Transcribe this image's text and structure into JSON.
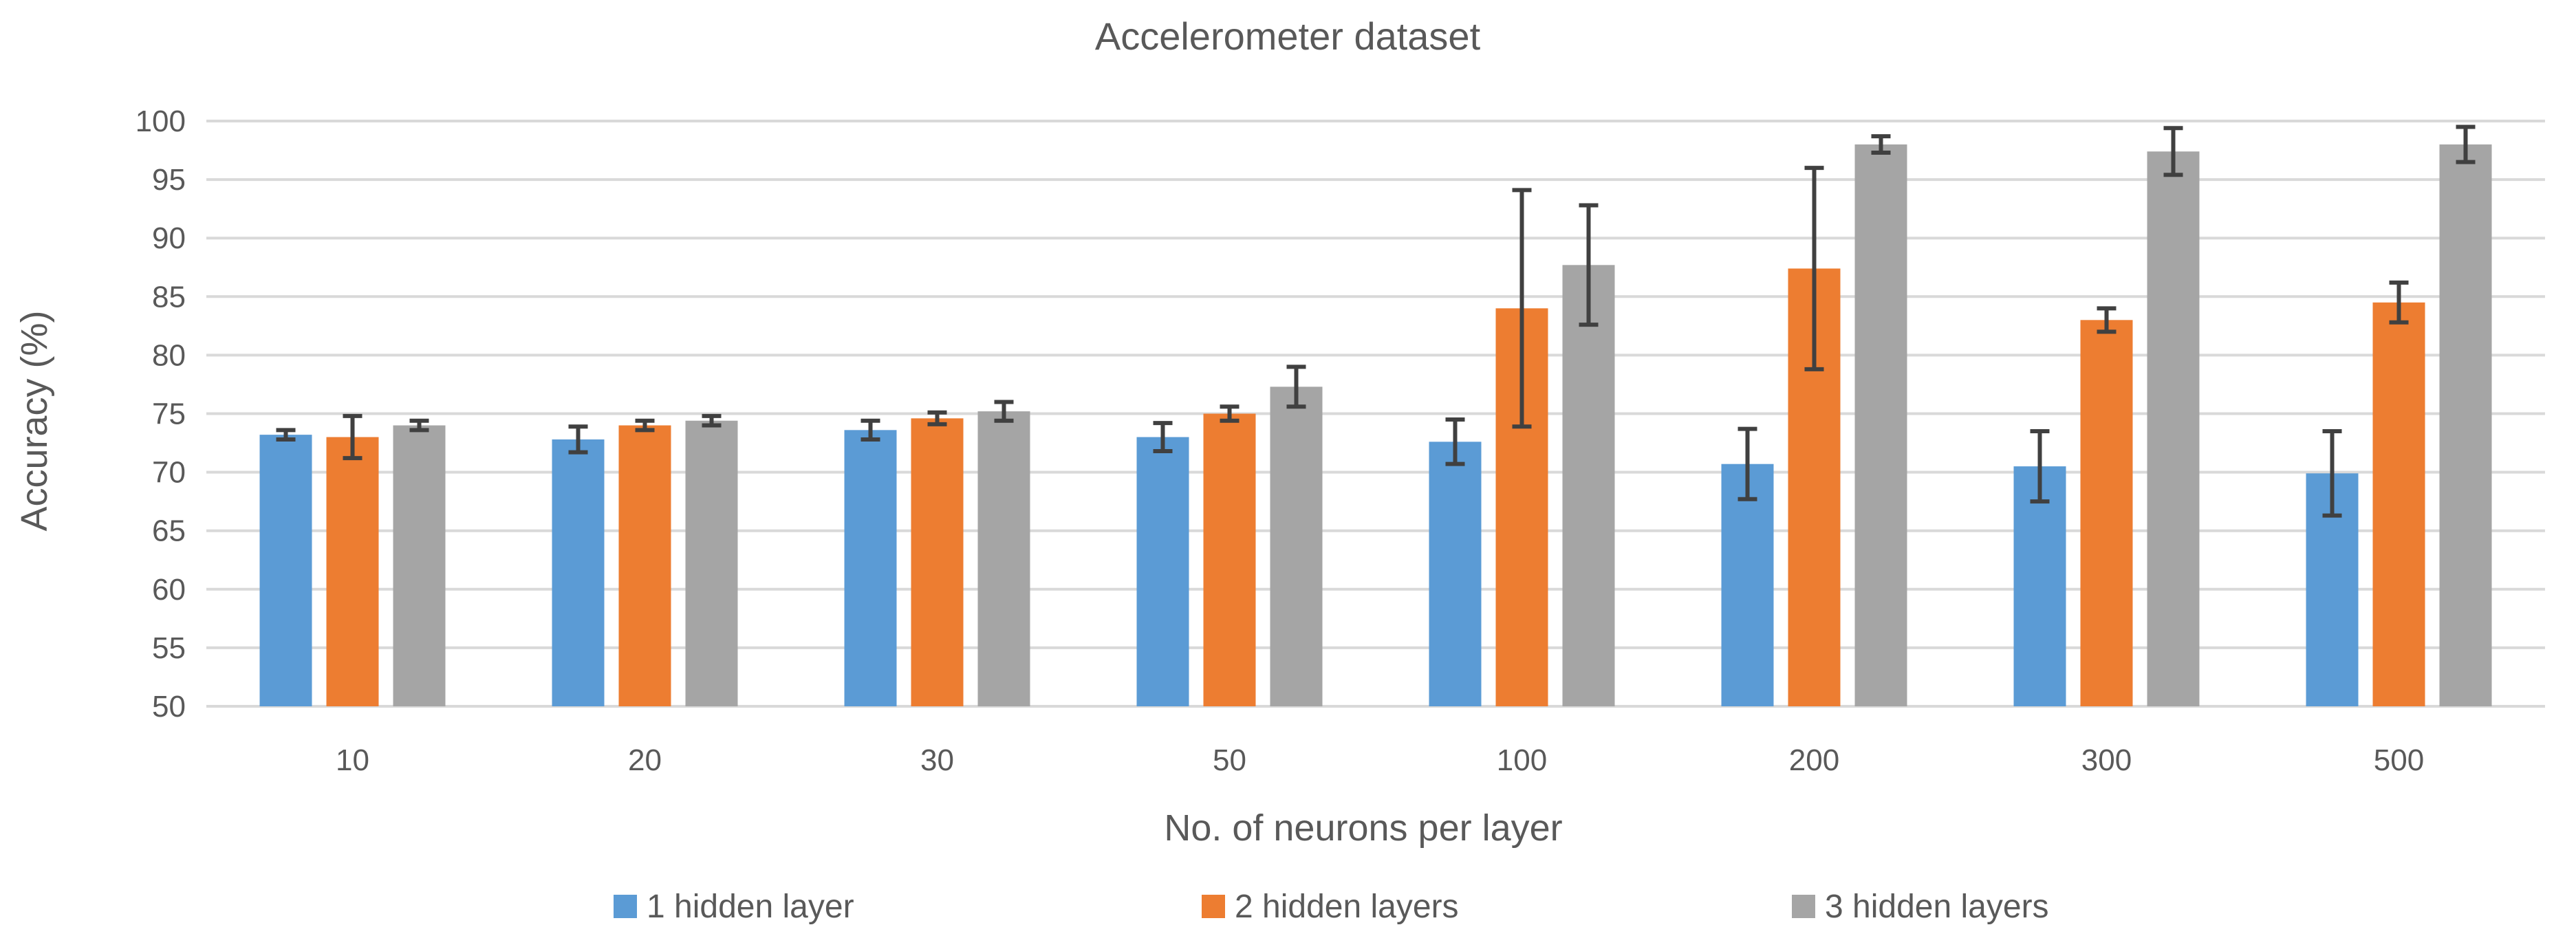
{
  "chart_data": {
    "type": "bar",
    "title": "Accelerometer dataset",
    "xlabel": "No. of neurons per layer",
    "ylabel": "Accuracy (%)",
    "ylim": [
      50,
      100
    ],
    "yticks": [
      50,
      55,
      60,
      65,
      70,
      75,
      80,
      85,
      90,
      95,
      100
    ],
    "grid": true,
    "legend_position": "bottom",
    "categories": [
      "10",
      "20",
      "30",
      "50",
      "100",
      "200",
      "300",
      "500"
    ],
    "series": [
      {
        "name": "1 hidden layer",
        "color": "#5b9bd5",
        "values": [
          73.2,
          72.8,
          73.6,
          73.0,
          72.6,
          70.7,
          70.5,
          69.9
        ],
        "error": [
          0.4,
          1.1,
          0.8,
          1.2,
          1.9,
          3.0,
          3.0,
          3.6
        ]
      },
      {
        "name": "2 hidden layers",
        "color": "#ed7d31",
        "values": [
          73.0,
          74.0,
          74.6,
          75.0,
          84.0,
          87.4,
          83.0,
          84.5
        ],
        "error": [
          1.8,
          0.4,
          0.5,
          0.6,
          10.1,
          8.6,
          1.0,
          1.7
        ]
      },
      {
        "name": "3 hidden layers",
        "color": "#a5a5a5",
        "values": [
          74.0,
          74.4,
          75.2,
          77.3,
          87.7,
          98.0,
          97.4,
          98.0
        ],
        "error": [
          0.4,
          0.4,
          0.8,
          1.7,
          5.1,
          0.7,
          2.0,
          1.5
        ]
      }
    ]
  }
}
